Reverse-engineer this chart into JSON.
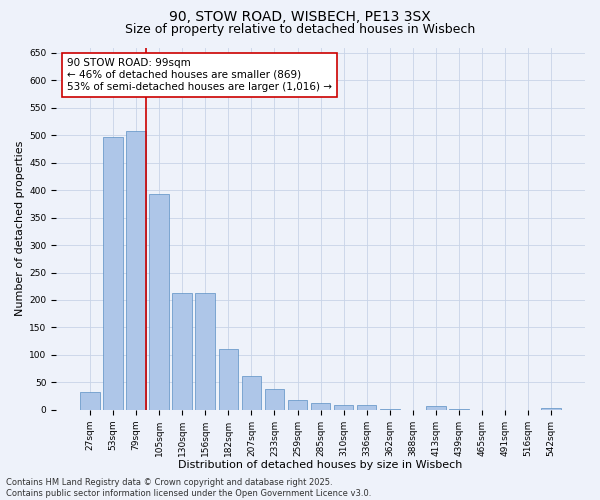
{
  "title": "90, STOW ROAD, WISBECH, PE13 3SX",
  "subtitle": "Size of property relative to detached houses in Wisbech",
  "xlabel": "Distribution of detached houses by size in Wisbech",
  "ylabel": "Number of detached properties",
  "categories": [
    "27sqm",
    "53sqm",
    "79sqm",
    "105sqm",
    "130sqm",
    "156sqm",
    "182sqm",
    "207sqm",
    "233sqm",
    "259sqm",
    "285sqm",
    "310sqm",
    "336sqm",
    "362sqm",
    "388sqm",
    "413sqm",
    "439sqm",
    "465sqm",
    "491sqm",
    "516sqm",
    "542sqm"
  ],
  "values": [
    32,
    497,
    508,
    393,
    213,
    212,
    110,
    62,
    37,
    17,
    13,
    9,
    9,
    1,
    0,
    7,
    1,
    0,
    0,
    0,
    4
  ],
  "bar_color": "#aec6e8",
  "bar_edge_color": "#5b8fc4",
  "grid_color": "#c8d4e8",
  "background_color": "#eef2fa",
  "vline_color": "#cc0000",
  "annotation_text": "90 STOW ROAD: 99sqm\n← 46% of detached houses are smaller (869)\n53% of semi-detached houses are larger (1,016) →",
  "annotation_box_color": "#ffffff",
  "annotation_border_color": "#cc0000",
  "ylim": [
    0,
    660
  ],
  "yticks": [
    0,
    50,
    100,
    150,
    200,
    250,
    300,
    350,
    400,
    450,
    500,
    550,
    600,
    650
  ],
  "footer": "Contains HM Land Registry data © Crown copyright and database right 2025.\nContains public sector information licensed under the Open Government Licence v3.0.",
  "title_fontsize": 10,
  "subtitle_fontsize": 9,
  "axis_label_fontsize": 8,
  "tick_fontsize": 6.5,
  "annotation_fontsize": 7.5,
  "footer_fontsize": 6
}
